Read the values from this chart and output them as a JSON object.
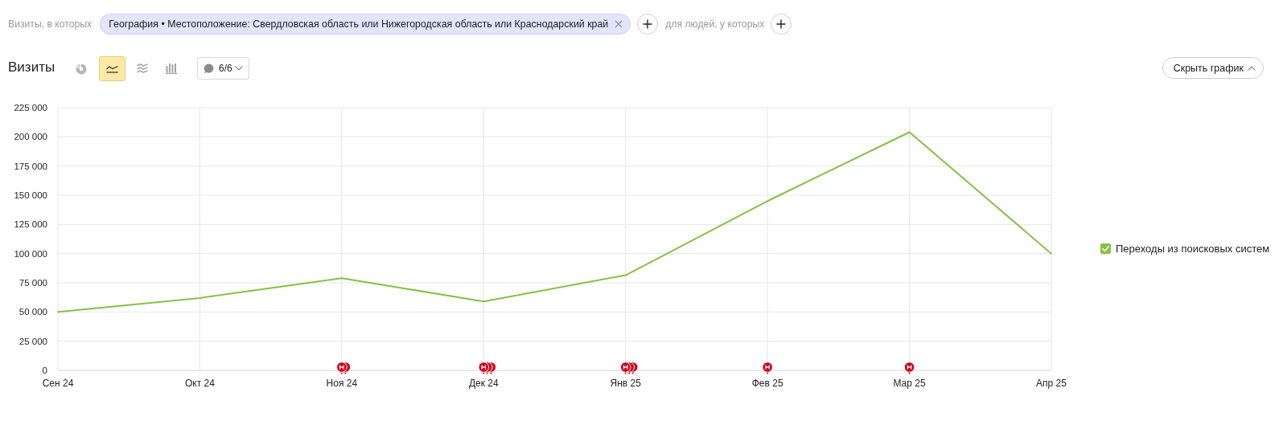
{
  "chart_data": {
    "type": "line",
    "title": "Визиты",
    "categories": [
      "Сен 24",
      "Окт 24",
      "Ноя 24",
      "Дек 24",
      "Янв 25",
      "Фев 25",
      "Мар 25",
      "Апр 25"
    ],
    "series": [
      {
        "name": "Переходы из поисковых систем",
        "color": "#84c341",
        "values": [
          50000,
          62000,
          79000,
          59000,
          81500,
          145000,
          204000,
          100000
        ]
      }
    ],
    "ylim": [
      0,
      225000
    ],
    "yticks": [
      0,
      {
        "value": 25000,
        "label": "25 000"
      },
      {
        "value": 50000,
        "label": "50 000"
      },
      {
        "value": 75000,
        "label": "75 000"
      },
      {
        "value": 100000,
        "label": "100 000"
      },
      {
        "value": 125000,
        "label": "125 000"
      },
      {
        "value": 150000,
        "label": "150 000"
      },
      {
        "value": 175000,
        "label": "175 000"
      },
      {
        "value": 200000,
        "label": "200 000"
      },
      {
        "value": 225000,
        "label": "225 000"
      }
    ],
    "grid": true,
    "legend": "right",
    "annotations": [
      "Визиты, в которых",
      "География • Местоположение: Свердловская область или Нижегородская область или Краснодарский край",
      "для людей, у которых",
      "6/6",
      "Скрыть график"
    ]
  }
}
